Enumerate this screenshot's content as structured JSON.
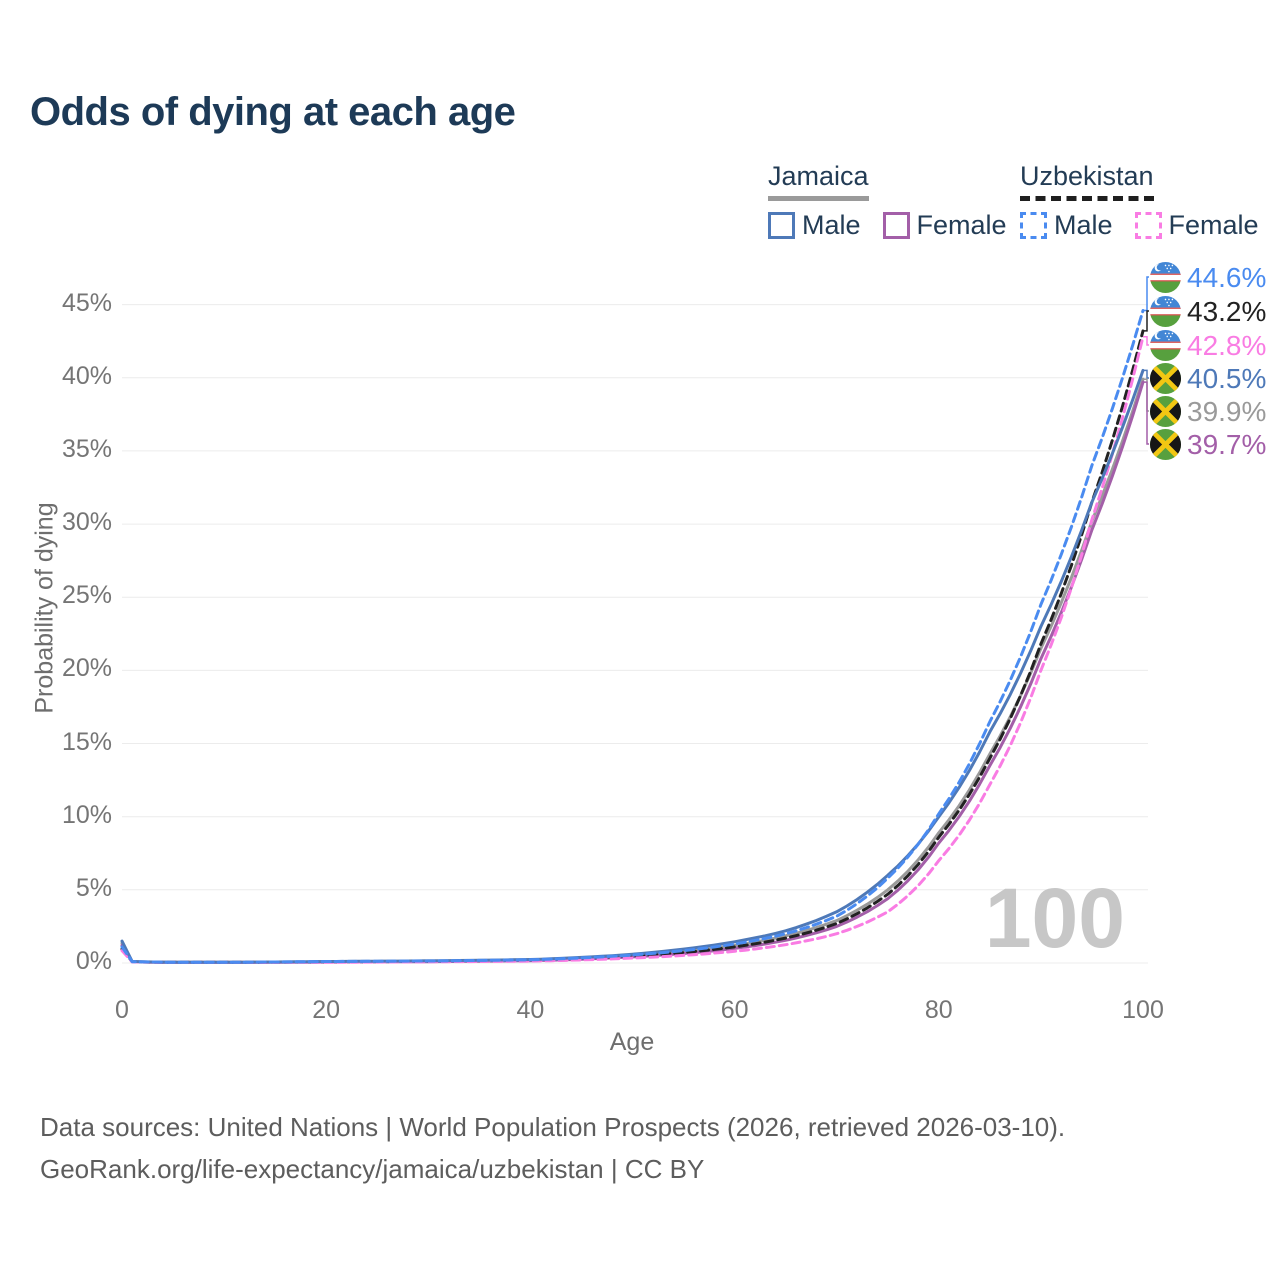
{
  "title": "Odds of dying at each age",
  "legend": {
    "jamaica": {
      "label": "Jamaica",
      "line_style": "solid",
      "line_color": "#9a9a9a"
    },
    "uzbekistan": {
      "label": "Uzbekistan",
      "line_style": "dashed",
      "line_color": "#1f1f1f"
    },
    "male_label": "Male",
    "female_label": "Female"
  },
  "chart_data": {
    "type": "line",
    "title": "Odds of dying at each age",
    "xlabel": "Age",
    "ylabel": "Probability of dying",
    "xlim": [
      0,
      100
    ],
    "ylim": [
      0,
      45
    ],
    "grid": true,
    "legend_position": "top-right",
    "watermark": "100",
    "xticks": [
      0,
      20,
      40,
      60,
      80,
      100
    ],
    "yticks": [
      {
        "label": "0%",
        "value": 0
      },
      {
        "label": "5%",
        "value": 5
      },
      {
        "label": "10%",
        "value": 10
      },
      {
        "label": "15%",
        "value": 15
      },
      {
        "label": "20%",
        "value": 20
      },
      {
        "label": "25%",
        "value": 25
      },
      {
        "label": "30%",
        "value": 30
      },
      {
        "label": "35%",
        "value": 35
      },
      {
        "label": "40%",
        "value": 40
      },
      {
        "label": "45%",
        "value": 45
      }
    ],
    "x": [
      0,
      1,
      5,
      10,
      20,
      30,
      40,
      50,
      55,
      60,
      65,
      70,
      75,
      80,
      85,
      90,
      95,
      100
    ],
    "series": [
      {
        "id": "uzbekistan-male",
        "name": "Uzbekistan Male",
        "country": "Uzbekistan",
        "sex": "male",
        "style": "dashed",
        "color": "#4a8bf0",
        "flag": "uzbekistan",
        "end_label": "44.6%",
        "end_value": 44.6,
        "values": [
          1.1,
          0.09,
          0.05,
          0.05,
          0.1,
          0.14,
          0.22,
          0.55,
          0.85,
          1.3,
          2.0,
          3.2,
          5.8,
          10.2,
          16.5,
          24.5,
          34.0,
          44.6
        ]
      },
      {
        "id": "uzbekistan-both",
        "name": "Uzbekistan",
        "country": "Uzbekistan",
        "sex": "both",
        "style": "dashed",
        "color": "#222222",
        "flag": "uzbekistan",
        "end_label": "43.2%",
        "end_value": 43.2,
        "values": [
          0.95,
          0.08,
          0.045,
          0.045,
          0.08,
          0.11,
          0.18,
          0.46,
          0.72,
          1.1,
          1.7,
          2.7,
          4.7,
          8.6,
          14.0,
          21.8,
          31.5,
          43.2
        ]
      },
      {
        "id": "uzbekistan-female",
        "name": "Uzbekistan Female",
        "country": "Uzbekistan",
        "sex": "female",
        "style": "dashed",
        "color": "#f97ce3",
        "flag": "uzbekistan",
        "end_label": "42.8%",
        "end_value": 42.8,
        "values": [
          0.85,
          0.07,
          0.04,
          0.04,
          0.05,
          0.08,
          0.13,
          0.34,
          0.52,
          0.8,
          1.25,
          2.0,
          3.5,
          7.0,
          12.2,
          20.0,
          30.3,
          42.8
        ]
      },
      {
        "id": "jamaica-male",
        "name": "Jamaica Male",
        "country": "Jamaica",
        "sex": "male",
        "style": "solid",
        "color": "#4e79b8",
        "flag": "jamaica",
        "end_label": "40.5%",
        "end_value": 40.5,
        "values": [
          1.5,
          0.1,
          0.05,
          0.05,
          0.1,
          0.15,
          0.24,
          0.6,
          0.95,
          1.45,
          2.2,
          3.5,
          6.0,
          10.0,
          15.8,
          23.0,
          31.5,
          40.5
        ]
      },
      {
        "id": "jamaica-both",
        "name": "Jamaica",
        "country": "Jamaica",
        "sex": "both",
        "style": "solid",
        "color": "#9a9a9a",
        "flag": "jamaica",
        "end_label": "39.9%",
        "end_value": 39.9,
        "values": [
          1.35,
          0.09,
          0.045,
          0.045,
          0.08,
          0.12,
          0.2,
          0.5,
          0.78,
          1.2,
          1.85,
          2.9,
          5.0,
          8.9,
          14.3,
          21.5,
          30.2,
          39.9
        ]
      },
      {
        "id": "jamaica-female",
        "name": "Jamaica Female",
        "country": "Jamaica",
        "sex": "female",
        "style": "solid",
        "color": "#a35fa8",
        "flag": "jamaica",
        "end_label": "39.7%",
        "end_value": 39.7,
        "values": [
          1.2,
          0.08,
          0.04,
          0.04,
          0.06,
          0.09,
          0.16,
          0.42,
          0.65,
          1.0,
          1.55,
          2.5,
          4.4,
          8.2,
          13.5,
          20.8,
          29.6,
          39.7
        ]
      }
    ]
  },
  "footer": {
    "line1": "Data sources: United Nations | World Population Prospects (2026, retrieved 2026-03-10).",
    "line2": "GeoRank.org/life-expectancy/jamaica/uzbekistan | CC BY"
  }
}
